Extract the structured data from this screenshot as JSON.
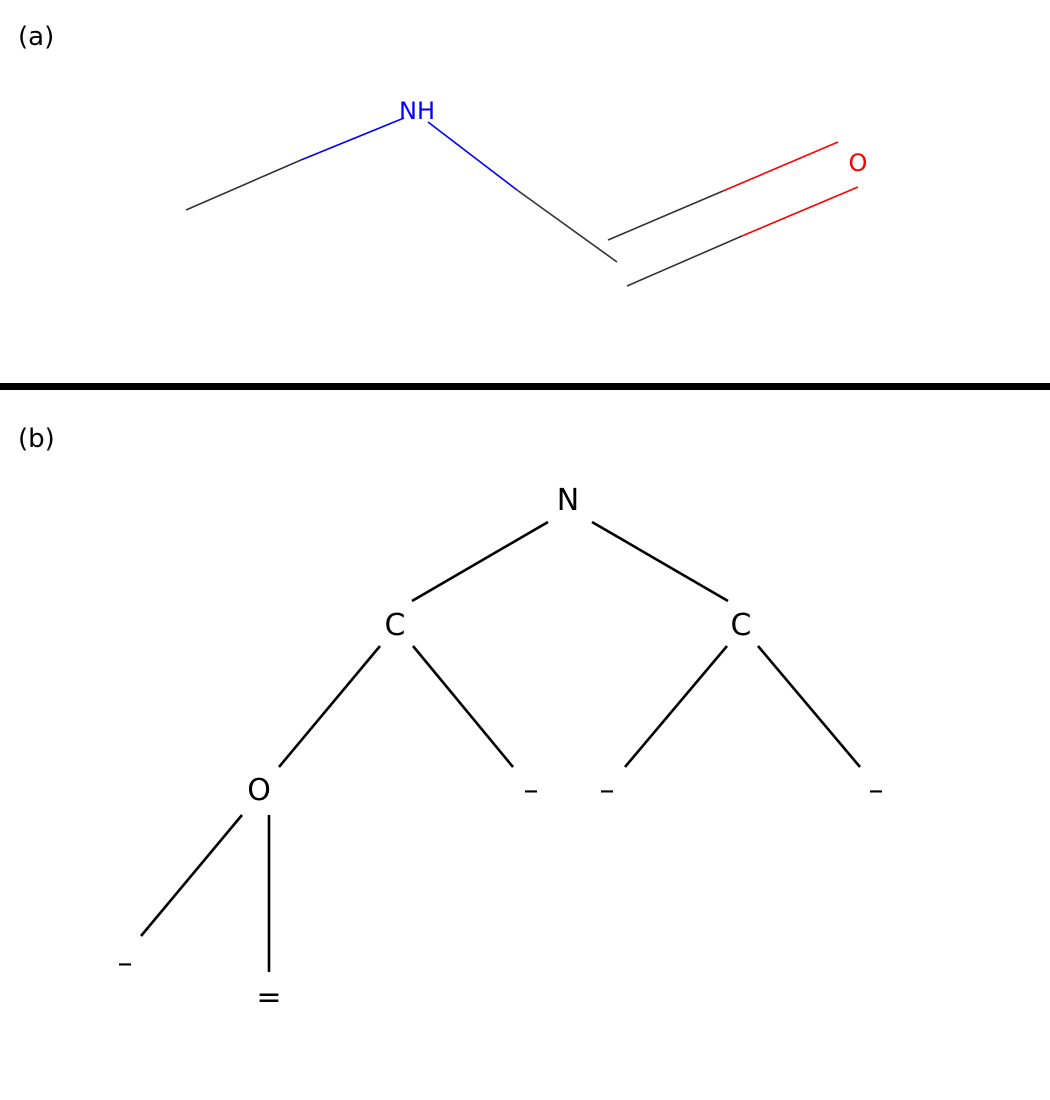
{
  "panels": {
    "a": {
      "label": "(a)"
    },
    "b": {
      "label": "(b)"
    }
  },
  "molecule": {
    "atoms": {
      "nh": "NH",
      "o": "O"
    },
    "colors": {
      "carbon_bond": "#333333",
      "nitrogen": "#0000ff",
      "oxygen": "#ff0000"
    }
  },
  "tree": {
    "root": "N",
    "left_c": "C",
    "right_c": "C",
    "o": "O",
    "c1_bond": "–",
    "c2_bond_left": "–",
    "c2_bond_right": "–",
    "o_bond_single": "–",
    "o_bond_double": "="
  },
  "divider_color": "#000000"
}
